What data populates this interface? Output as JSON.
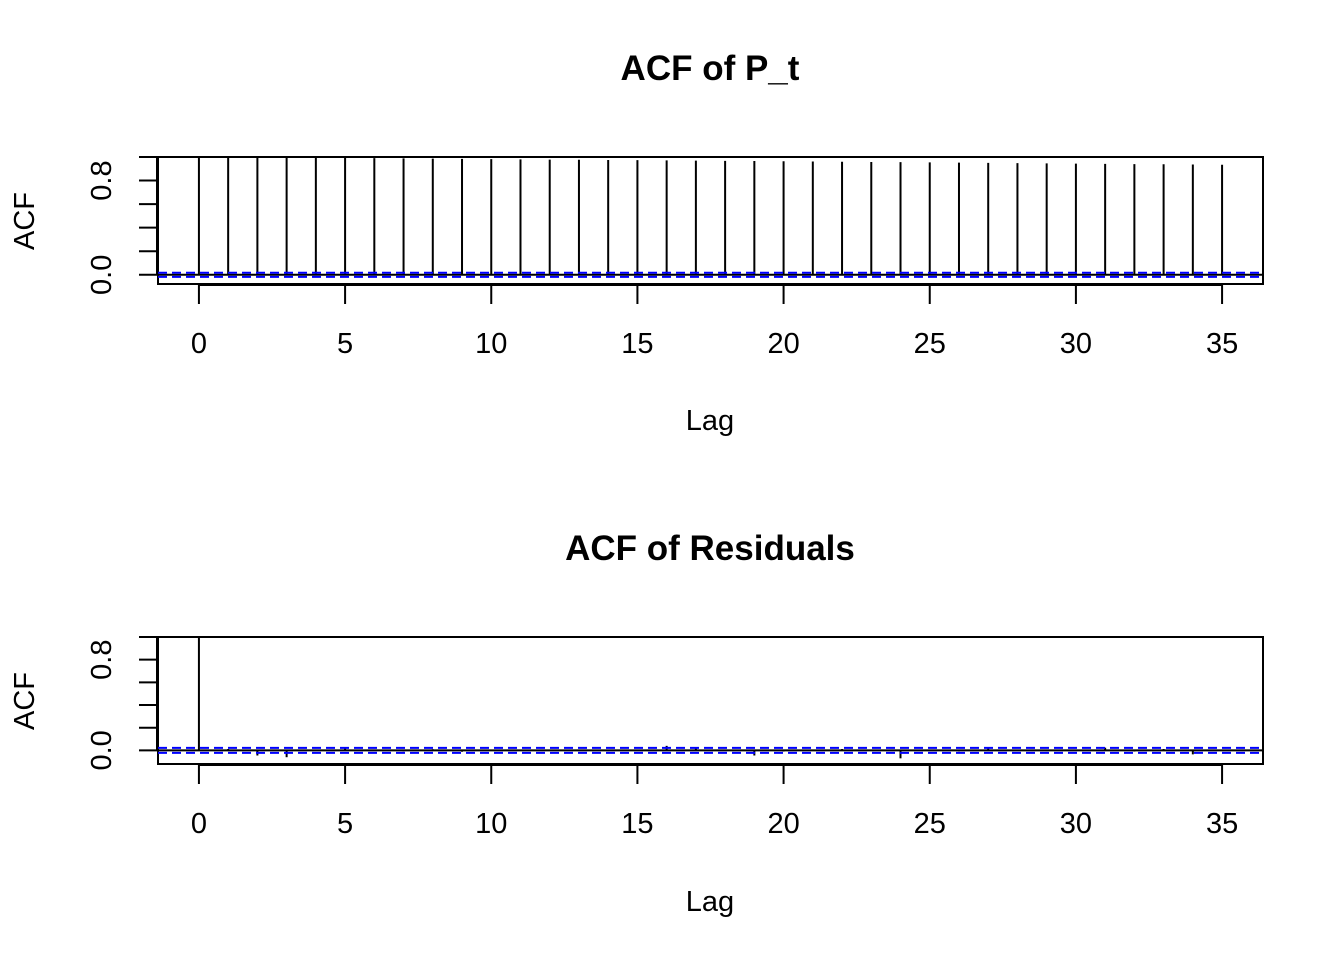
{
  "chart_data": [
    {
      "type": "bar",
      "title": "ACF of P_t",
      "xlabel": "Lag",
      "ylabel": "ACF",
      "xlim": [
        -1.4,
        36.4
      ],
      "ylim": [
        -0.078,
        1.0
      ],
      "x_ticks": [
        0,
        5,
        10,
        15,
        20,
        25,
        30,
        35
      ],
      "x_tick_labels": [
        "0",
        "5",
        "10",
        "15",
        "20",
        "25",
        "30",
        "35"
      ],
      "y_ticks": [
        0,
        0.2,
        0.4,
        0.6,
        0.8,
        1.0
      ],
      "y_tick_labels": {
        "0": "0.0",
        "0.8": "0.8"
      },
      "confidence_band": 0.018,
      "colors": {
        "bars": "#000000",
        "confidence": "#0000ff",
        "zero_line": "#000000"
      },
      "x": [
        0,
        1,
        2,
        3,
        4,
        5,
        6,
        7,
        8,
        9,
        10,
        11,
        12,
        13,
        14,
        15,
        16,
        17,
        18,
        19,
        20,
        21,
        22,
        23,
        24,
        25,
        26,
        27,
        28,
        29,
        30,
        31,
        32,
        33,
        34,
        35
      ],
      "values": [
        1.0,
        0.998,
        0.997,
        0.995,
        0.993,
        0.992,
        0.99,
        0.988,
        0.986,
        0.984,
        0.982,
        0.98,
        0.978,
        0.977,
        0.975,
        0.973,
        0.971,
        0.969,
        0.967,
        0.966,
        0.964,
        0.962,
        0.96,
        0.958,
        0.956,
        0.954,
        0.952,
        0.95,
        0.948,
        0.946,
        0.944,
        0.942,
        0.94,
        0.938,
        0.936,
        0.934
      ]
    },
    {
      "type": "bar",
      "title": "ACF of Residuals",
      "xlabel": "Lag",
      "ylabel": "ACF",
      "xlim": [
        -1.4,
        36.4
      ],
      "ylim": [
        -0.12,
        1.0
      ],
      "x_ticks": [
        0,
        5,
        10,
        15,
        20,
        25,
        30,
        35
      ],
      "x_tick_labels": [
        "0",
        "5",
        "10",
        "15",
        "20",
        "25",
        "30",
        "35"
      ],
      "y_ticks": [
        0,
        0.2,
        0.4,
        0.6,
        0.8,
        1.0
      ],
      "y_tick_labels": {
        "0": "0.0",
        "0.8": "0.8"
      },
      "confidence_band": 0.022,
      "colors": {
        "bars": "#000000",
        "confidence": "#0000ff",
        "zero_line": "#000000"
      },
      "x": [
        0,
        1,
        2,
        3,
        4,
        5,
        6,
        7,
        8,
        9,
        10,
        11,
        12,
        13,
        14,
        15,
        16,
        17,
        18,
        19,
        20,
        21,
        22,
        23,
        24,
        25,
        26,
        27,
        28,
        29,
        30,
        31,
        32,
        33,
        34,
        35
      ],
      "values": [
        1.0,
        0.012,
        -0.045,
        -0.06,
        0.005,
        0.03,
        0.004,
        -0.008,
        0.01,
        -0.012,
        0.006,
        -0.004,
        0.008,
        0.003,
        -0.006,
        -0.002,
        0.04,
        0.025,
        0.006,
        -0.045,
        -0.01,
        0.006,
        0.012,
        0.004,
        -0.07,
        0.004,
        -0.008,
        0.022,
        0.004,
        -0.006,
        0.008,
        0.024,
        -0.01,
        0.012,
        -0.035,
        0.006
      ]
    }
  ]
}
